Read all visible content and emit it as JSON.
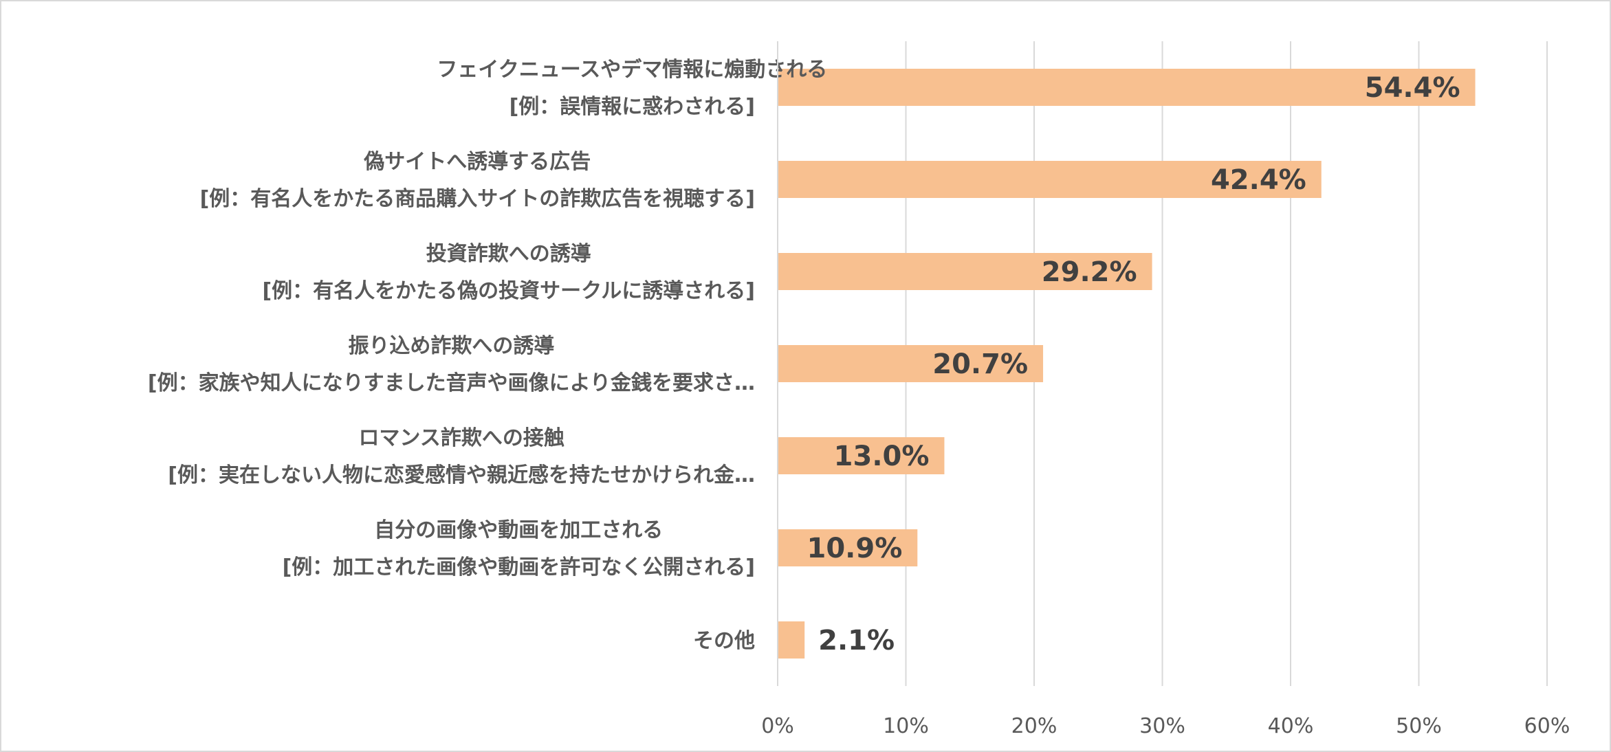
{
  "chart_data": {
    "type": "bar",
    "orientation": "horizontal",
    "title": "",
    "xlabel": "",
    "ylabel": "",
    "xlim": [
      0,
      60
    ],
    "grid": true,
    "bar_color": "#F8C090",
    "categories": [
      [
        "フェイクニュースやデマ情報に煽動される",
        "[例：誤情報に惑わされる]"
      ],
      [
        "偽サイトへ誘導する広告",
        "[例：有名人をかたる商品購入サイトの詐欺広告を視聴する]"
      ],
      [
        "投資詐欺への誘導",
        "[例：有名人をかたる偽の投資サークルに誘導される]"
      ],
      [
        "振り込め詐欺への誘導",
        "[例：家族や知人になりすました音声や画像により金銭を要求さ…"
      ],
      [
        "ロマンス詐欺への接触",
        "[例：実在しない人物に恋愛感情や親近感を持たせかけられ金…"
      ],
      [
        "自分の画像や動画を加工される",
        "[例：加工された画像や動画を許可なく公開される]"
      ],
      [
        "その他"
      ]
    ],
    "values": [
      54.4,
      42.4,
      29.2,
      20.7,
      13.0,
      10.9,
      2.1
    ],
    "data_labels": [
      "54.4%",
      "42.4%",
      "29.2%",
      "20.7%",
      "13.0%",
      "10.9%",
      "2.1%"
    ],
    "ticks": [
      0,
      10,
      20,
      30,
      40,
      50,
      60
    ],
    "tick_labels": [
      "0%",
      "10%",
      "20%",
      "30%",
      "40%",
      "50%",
      "60%"
    ]
  }
}
